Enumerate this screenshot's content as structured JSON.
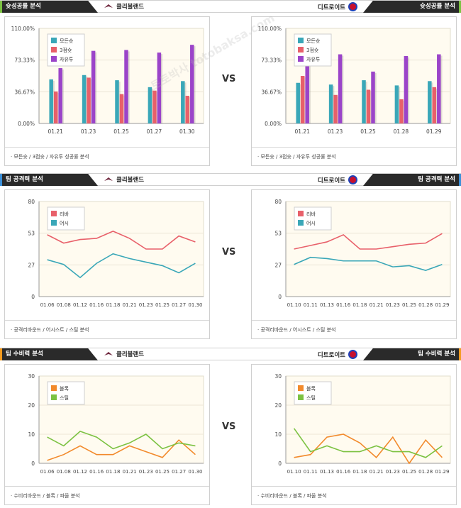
{
  "vs_label": "VS",
  "watermark": "토토박사 totobaksa.com",
  "teams": {
    "left": "클리블랜드",
    "right": "디트로이트"
  },
  "sections": {
    "shooting": {
      "title": "슛성공률 분석",
      "footer": "· 모든슛 / 3점슛 / 자유투 성공률 분석",
      "accent": "#7cc242"
    },
    "offense": {
      "title": "팀 공격력 분석",
      "footer": "· 공격리바운드 / 어시스트 / 스틸 분석",
      "accent": "#3a8fd8"
    },
    "defense": {
      "title": "팀 수비력 분석",
      "footer": "· 수비리바운드 / 블록 / 파울 분석",
      "accent": "#f39a1e"
    }
  },
  "chart_data": [
    {
      "id": "shooting-cle",
      "type": "bar",
      "categories": [
        "01.21",
        "01.23",
        "01.25",
        "01.27",
        "01.30"
      ],
      "yticks": [
        "110.00%",
        "73.33%",
        "36.67%",
        "0.00%"
      ],
      "ylim": [
        0,
        110
      ],
      "series": [
        {
          "name": "모든슛",
          "color": "#3aa7b8",
          "values": [
            51,
            56,
            50,
            42,
            49
          ]
        },
        {
          "name": "3점슛",
          "color": "#e8606a",
          "values": [
            37,
            53,
            34,
            38,
            32
          ]
        },
        {
          "name": "자유투",
          "color": "#9b44c9",
          "values": [
            64,
            84,
            85,
            82,
            91
          ]
        }
      ]
    },
    {
      "id": "shooting-det",
      "type": "bar",
      "categories": [
        "01.21",
        "01.23",
        "01.25",
        "01.28",
        "01.29"
      ],
      "yticks": [
        "110.00%",
        "73.33%",
        "36.67%",
        "0.00%"
      ],
      "ylim": [
        0,
        110
      ],
      "series": [
        {
          "name": "모든슛",
          "color": "#3aa7b8",
          "values": [
            47,
            45,
            50,
            44,
            49
          ]
        },
        {
          "name": "3점슛",
          "color": "#e8606a",
          "values": [
            55,
            33,
            39,
            28,
            42
          ]
        },
        {
          "name": "자유투",
          "color": "#9b44c9",
          "values": [
            82,
            80,
            60,
            78,
            80
          ]
        }
      ]
    },
    {
      "id": "offense-cle",
      "type": "line",
      "categories": [
        "01.06",
        "01.08",
        "01.12",
        "01.16",
        "01.18",
        "01.21",
        "01.23",
        "01.25",
        "01.27",
        "01.30"
      ],
      "yticks": [
        "80",
        "53",
        "27",
        "0"
      ],
      "ylim": [
        0,
        80
      ],
      "series": [
        {
          "name": "리바",
          "color": "#e8606a",
          "values": [
            52,
            45,
            48,
            49,
            55,
            49,
            40,
            40,
            51,
            46
          ]
        },
        {
          "name": "어시",
          "color": "#3aa7b8",
          "values": [
            31,
            27,
            16,
            28,
            36,
            32,
            29,
            26,
            20,
            28
          ]
        }
      ]
    },
    {
      "id": "offense-det",
      "type": "line",
      "categories": [
        "01.10",
        "01.11",
        "01.13",
        "01.16",
        "01.18",
        "01.21",
        "01.23",
        "01.25",
        "01.28",
        "01.29"
      ],
      "yticks": [
        "80",
        "53",
        "27",
        "0"
      ],
      "ylim": [
        0,
        80
      ],
      "series": [
        {
          "name": "리바",
          "color": "#e8606a",
          "values": [
            40,
            43,
            46,
            52,
            40,
            40,
            42,
            44,
            45,
            53
          ]
        },
        {
          "name": "어시",
          "color": "#3aa7b8",
          "values": [
            27,
            33,
            32,
            30,
            30,
            30,
            25,
            26,
            22,
            27
          ]
        }
      ]
    },
    {
      "id": "defense-cle",
      "type": "line",
      "categories": [
        "01.06",
        "01.08",
        "01.12",
        "01.16",
        "01.18",
        "01.21",
        "01.23",
        "01.25",
        "01.27",
        "01.30"
      ],
      "yticks": [
        "30",
        "20",
        "10",
        "0"
      ],
      "ylim": [
        0,
        30
      ],
      "series": [
        {
          "name": "블록",
          "color": "#f28a2c",
          "values": [
            1,
            3,
            6,
            3,
            3,
            6,
            4,
            2,
            8,
            3
          ]
        },
        {
          "name": "스틸",
          "color": "#7cc242",
          "values": [
            9,
            6,
            11,
            9,
            5,
            7,
            10,
            5,
            7,
            6
          ]
        }
      ]
    },
    {
      "id": "defense-det",
      "type": "line",
      "categories": [
        "01.10",
        "01.11",
        "01.13",
        "01.16",
        "01.18",
        "01.21",
        "01.23",
        "01.25",
        "01.28",
        "01.29"
      ],
      "yticks": [
        "30",
        "20",
        "10",
        "0"
      ],
      "ylim": [
        0,
        30
      ],
      "series": [
        {
          "name": "블록",
          "color": "#f28a2c",
          "values": [
            2,
            3,
            9,
            10,
            7,
            2,
            9,
            0,
            8,
            2
          ]
        },
        {
          "name": "스틸",
          "color": "#7cc242",
          "values": [
            12,
            4,
            6,
            4,
            4,
            6,
            4,
            4,
            2,
            6
          ]
        }
      ]
    }
  ]
}
